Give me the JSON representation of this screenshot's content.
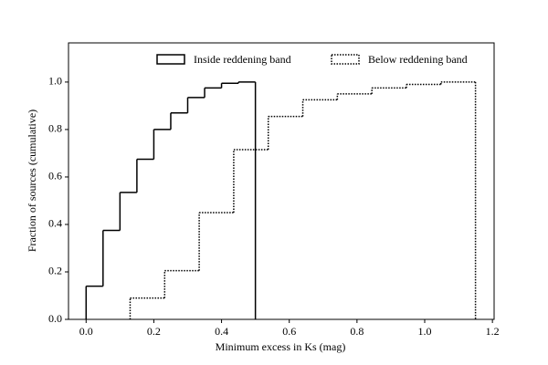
{
  "chart_data": {
    "type": "histogram",
    "xlabel": "Minimum excess in Ks (mag)",
    "ylabel": "Fraction of sources (cumulative)",
    "xlim": [
      -0.052,
      1.205
    ],
    "ylim": [
      0,
      1.165
    ],
    "xticks": [
      {
        "value": 0,
        "label": "0.0"
      },
      0.2,
      0.4,
      0.6,
      0.8,
      {
        "value": 1,
        "label": "1.0"
      },
      1.2
    ],
    "yticks": [
      {
        "value": 0,
        "label": "0.0"
      },
      0.2,
      0.4,
      0.6,
      0.8,
      {
        "value": 1,
        "label": "1.0"
      }
    ],
    "legend": "upper right",
    "series": [
      {
        "name": "Inside reddening band",
        "color": "#000000",
        "linestyle": "solid",
        "bins": [
          0,
          0.05,
          0.1,
          0.15,
          0.2,
          0.25,
          0.3,
          0.35,
          0.4,
          0.45,
          0.5
        ],
        "values": [
          0.14,
          0.375,
          0.535,
          0.675,
          0.8,
          0.87,
          0.935,
          0.975,
          0.995,
          1.0
        ]
      },
      {
        "name": "Below reddening band",
        "color": "#000000",
        "linestyle": "dotted",
        "bins": [
          0.13,
          0.232,
          0.334,
          0.436,
          0.538,
          0.64,
          0.742,
          0.844,
          0.946,
          1.048,
          1.15
        ],
        "values": [
          0.09,
          0.205,
          0.45,
          0.715,
          0.855,
          0.925,
          0.95,
          0.975,
          0.99,
          1.0
        ]
      }
    ]
  }
}
